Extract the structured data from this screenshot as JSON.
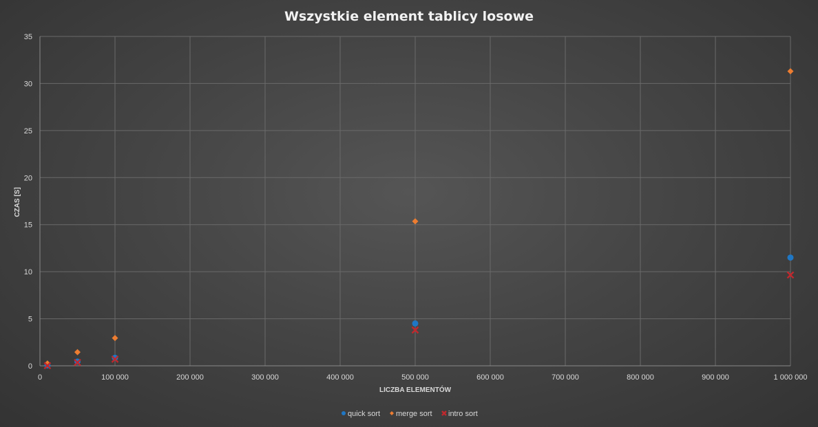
{
  "chart_data": {
    "type": "scatter",
    "title": "Wszystkie element tablicy losowe",
    "xlabel": "LICZBA ELEMENTÓW",
    "ylabel": "CZAS [S]",
    "xlim": [
      0,
      1000000
    ],
    "ylim": [
      0,
      35
    ],
    "x_ticks": [
      0,
      100000,
      200000,
      300000,
      400000,
      500000,
      600000,
      700000,
      800000,
      900000,
      1000000
    ],
    "x_tick_labels": [
      "0",
      "100 000",
      "200 000",
      "300 000",
      "400 000",
      "500 000",
      "600 000",
      "700 000",
      "800 000",
      "900 000",
      "1 000 000"
    ],
    "y_ticks": [
      0,
      5,
      10,
      15,
      20,
      25,
      30,
      35
    ],
    "y_tick_labels": [
      "0",
      "5",
      "10",
      "15",
      "20",
      "25",
      "30",
      "35"
    ],
    "grid": true,
    "legend_position": "bottom",
    "x": [
      10000,
      50000,
      100000,
      500000,
      1000000
    ],
    "series": [
      {
        "name": "quick sort",
        "marker": "circle",
        "color": "#1f77c4",
        "values": [
          0.05,
          0.45,
          0.85,
          4.5,
          11.5
        ]
      },
      {
        "name": "merge sort",
        "marker": "diamond",
        "color": "#ed7d31",
        "values": [
          0.25,
          1.45,
          2.95,
          15.35,
          31.3
        ]
      },
      {
        "name": "intro sort",
        "marker": "x",
        "color": "#c0282d",
        "values": [
          0.02,
          0.35,
          0.7,
          3.8,
          9.65
        ]
      }
    ]
  }
}
